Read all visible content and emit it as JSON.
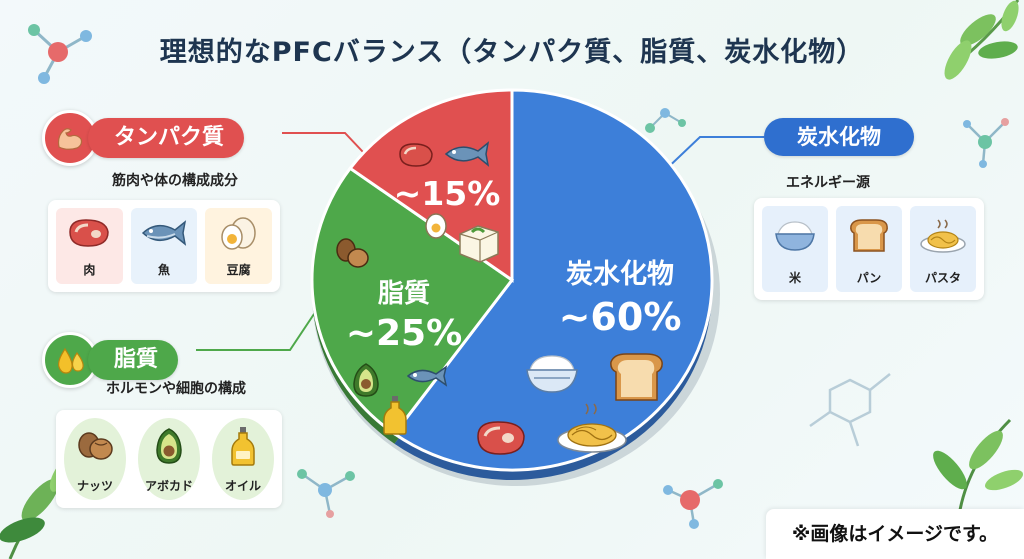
{
  "title": "理想的なPFCバランス（タンパク質、脂質、炭水化物）",
  "note": "※画像はイメージです。",
  "colors": {
    "protein": "#e05050",
    "fat": "#4ea84a",
    "carb": "#3d7fd9"
  },
  "protein": {
    "label": "タンパク質",
    "description": "筋肉や体の構成成分",
    "icon": "muscle-arm-icon",
    "items": [
      {
        "label": "肉",
        "icon": "meat-icon"
      },
      {
        "label": "魚",
        "icon": "fish-icon"
      },
      {
        "label": "豆腐",
        "icon": "egg-icon"
      }
    ]
  },
  "fat": {
    "label": "脂質",
    "description": "ホルモンや細胞の構成",
    "icon": "oil-drops-icon",
    "items": [
      {
        "label": "ナッツ",
        "icon": "nuts-icon"
      },
      {
        "label": "アボカド",
        "icon": "avocado-icon"
      },
      {
        "label": "オイル",
        "icon": "oil-bottle-icon"
      }
    ]
  },
  "carb": {
    "label": "炭水化物",
    "description": "エネルギー源",
    "items": [
      {
        "label": "米",
        "icon": "rice-bowl-icon"
      },
      {
        "label": "パン",
        "icon": "bread-icon"
      },
      {
        "label": "パスタ",
        "icon": "pasta-icon"
      }
    ]
  },
  "chart_data": {
    "type": "pie",
    "title": "理想的なPFCバランス（タンパク質、脂質、炭水化物）",
    "slices": [
      {
        "name": "タンパク質",
        "value": 15,
        "label": "~15%",
        "color": "#e05050"
      },
      {
        "name": "脂質",
        "value": 25,
        "label": "~25%",
        "color": "#4ea84a"
      },
      {
        "name": "炭水化物",
        "value": 60,
        "label": "~60%",
        "color": "#3d7fd9"
      }
    ]
  }
}
